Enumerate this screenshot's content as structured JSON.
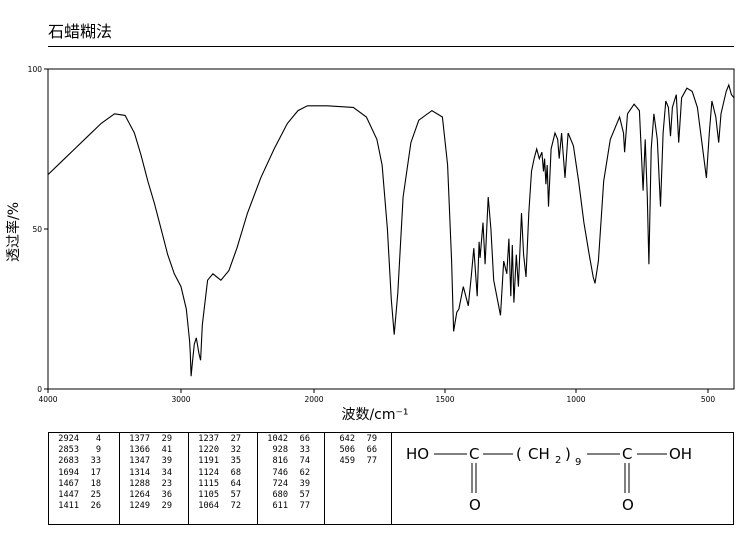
{
  "page": {
    "title": "石蜡糊法"
  },
  "chart_data": {
    "type": "line",
    "title": "石蜡糊法",
    "xlabel": "波数/cm⁻¹",
    "ylabel": "透过率/%",
    "xlim": [
      4000,
      400
    ],
    "ylim": [
      0,
      100
    ],
    "x_ticks": [
      4000,
      3000,
      2000,
      1500,
      1000,
      500
    ],
    "y_ticks": [
      0,
      50,
      100
    ],
    "grid": false,
    "series": [
      {
        "line_color": "#000000",
        "points": [
          [
            4000,
            67
          ],
          [
            3900,
            71
          ],
          [
            3800,
            75
          ],
          [
            3700,
            79
          ],
          [
            3600,
            83
          ],
          [
            3500,
            86
          ],
          [
            3420,
            85.5
          ],
          [
            3350,
            80
          ],
          [
            3300,
            73
          ],
          [
            3250,
            65
          ],
          [
            3200,
            58
          ],
          [
            3150,
            50
          ],
          [
            3100,
            42
          ],
          [
            3050,
            36
          ],
          [
            3000,
            32
          ],
          [
            2960,
            25
          ],
          [
            2935,
            15
          ],
          [
            2930,
            11
          ],
          [
            2924,
            4
          ],
          [
            2915,
            8
          ],
          [
            2900,
            14
          ],
          [
            2885,
            16
          ],
          [
            2865,
            11
          ],
          [
            2853,
            9
          ],
          [
            2840,
            20
          ],
          [
            2800,
            34
          ],
          [
            2760,
            36
          ],
          [
            2700,
            34
          ],
          [
            2640,
            37
          ],
          [
            2580,
            44
          ],
          [
            2500,
            55
          ],
          [
            2400,
            66
          ],
          [
            2300,
            75
          ],
          [
            2200,
            83
          ],
          [
            2120,
            87
          ],
          [
            2050,
            88.5
          ],
          [
            1950,
            88.5
          ],
          [
            1850,
            88
          ],
          [
            1800,
            85
          ],
          [
            1760,
            78
          ],
          [
            1740,
            70
          ],
          [
            1720,
            50
          ],
          [
            1705,
            28
          ],
          [
            1694,
            17
          ],
          [
            1680,
            30
          ],
          [
            1660,
            60
          ],
          [
            1630,
            77
          ],
          [
            1600,
            84
          ],
          [
            1550,
            87
          ],
          [
            1510,
            85
          ],
          [
            1490,
            70
          ],
          [
            1475,
            40
          ],
          [
            1467,
            18
          ],
          [
            1455,
            24
          ],
          [
            1447,
            25
          ],
          [
            1430,
            32
          ],
          [
            1411,
            26
          ],
          [
            1400,
            35
          ],
          [
            1390,
            44
          ],
          [
            1377,
            29
          ],
          [
            1370,
            46
          ],
          [
            1366,
            41
          ],
          [
            1355,
            52
          ],
          [
            1347,
            39
          ],
          [
            1335,
            60
          ],
          [
            1325,
            50
          ],
          [
            1314,
            34
          ],
          [
            1300,
            28
          ],
          [
            1288,
            23
          ],
          [
            1276,
            40
          ],
          [
            1264,
            36
          ],
          [
            1256,
            47
          ],
          [
            1249,
            29
          ],
          [
            1243,
            45
          ],
          [
            1237,
            27
          ],
          [
            1228,
            42
          ],
          [
            1220,
            32
          ],
          [
            1208,
            55
          ],
          [
            1200,
            42
          ],
          [
            1191,
            35
          ],
          [
            1180,
            55
          ],
          [
            1170,
            68
          ],
          [
            1160,
            72
          ],
          [
            1150,
            75
          ],
          [
            1140,
            72
          ],
          [
            1130,
            74
          ],
          [
            1124,
            68
          ],
          [
            1120,
            72
          ],
          [
            1115,
            64
          ],
          [
            1110,
            70
          ],
          [
            1105,
            57
          ],
          [
            1095,
            75
          ],
          [
            1080,
            80
          ],
          [
            1070,
            78
          ],
          [
            1064,
            72
          ],
          [
            1055,
            80
          ],
          [
            1042,
            66
          ],
          [
            1030,
            80
          ],
          [
            1010,
            76
          ],
          [
            990,
            65
          ],
          [
            970,
            52
          ],
          [
            950,
            42
          ],
          [
            935,
            35
          ],
          [
            928,
            33
          ],
          [
            915,
            40
          ],
          [
            895,
            65
          ],
          [
            870,
            78
          ],
          [
            850,
            82
          ],
          [
            835,
            85
          ],
          [
            820,
            80
          ],
          [
            816,
            74
          ],
          [
            805,
            86
          ],
          [
            780,
            89
          ],
          [
            760,
            87
          ],
          [
            746,
            62
          ],
          [
            738,
            78
          ],
          [
            730,
            60
          ],
          [
            724,
            39
          ],
          [
            715,
            75
          ],
          [
            705,
            86
          ],
          [
            692,
            78
          ],
          [
            680,
            57
          ],
          [
            670,
            80
          ],
          [
            660,
            90
          ],
          [
            650,
            88
          ],
          [
            642,
            79
          ],
          [
            635,
            88
          ],
          [
            620,
            92
          ],
          [
            611,
            77
          ],
          [
            600,
            91
          ],
          [
            580,
            94
          ],
          [
            560,
            93
          ],
          [
            540,
            88
          ],
          [
            520,
            75
          ],
          [
            506,
            66
          ],
          [
            495,
            80
          ],
          [
            485,
            90
          ],
          [
            470,
            85
          ],
          [
            459,
            77
          ],
          [
            450,
            86
          ],
          [
            430,
            93
          ],
          [
            420,
            95
          ],
          [
            410,
            92
          ],
          [
            400,
            91
          ]
        ]
      }
    ],
    "peak_table": {
      "columns": [
        [
          [
            "2924",
            "4"
          ],
          [
            "2853",
            "9"
          ],
          [
            "2683",
            "33"
          ],
          [
            "1694",
            "17"
          ],
          [
            "1467",
            "18"
          ],
          [
            "1447",
            "25"
          ],
          [
            "1411",
            "26"
          ]
        ],
        [
          [
            "1377",
            "29"
          ],
          [
            "1366",
            "41"
          ],
          [
            "1347",
            "39"
          ],
          [
            "1314",
            "34"
          ],
          [
            "1288",
            "23"
          ],
          [
            "1264",
            "36"
          ],
          [
            "1249",
            "29"
          ]
        ],
        [
          [
            "1237",
            "27"
          ],
          [
            "1220",
            "32"
          ],
          [
            "1191",
            "35"
          ],
          [
            "1124",
            "68"
          ],
          [
            "1115",
            "64"
          ],
          [
            "1105",
            "57"
          ],
          [
            "1064",
            "72"
          ]
        ],
        [
          [
            "1042",
            "66"
          ],
          [
            "928",
            "33"
          ],
          [
            "816",
            "74"
          ],
          [
            "746",
            "62"
          ],
          [
            "724",
            "39"
          ],
          [
            "680",
            "57"
          ],
          [
            "611",
            "77"
          ]
        ],
        [
          [
            "642",
            "79"
          ],
          [
            "506",
            "66"
          ],
          [
            "459",
            "77"
          ]
        ]
      ]
    },
    "structure": {
      "left_group": "HO",
      "carbon": "C",
      "chain_open": "(",
      "chain_ch": "CH",
      "chain_sub": "2",
      "chain_close": ")",
      "chain_count": "9",
      "right_group": "OH",
      "oxygen": "O"
    }
  }
}
